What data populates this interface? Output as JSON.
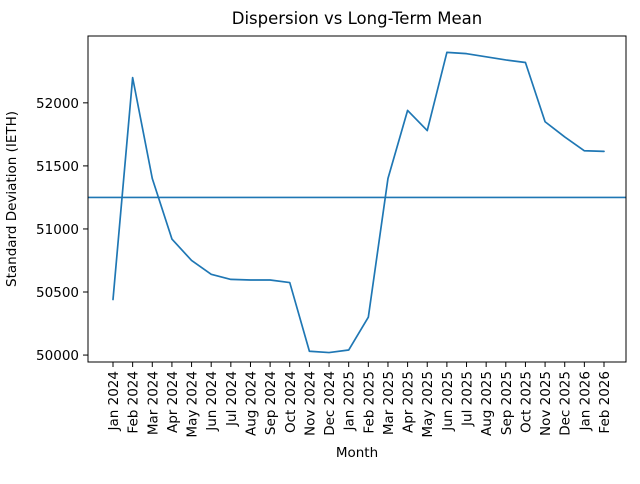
{
  "chart_data": {
    "type": "line",
    "title": "Dispersion vs Long-Term Mean",
    "xlabel": "Month",
    "ylabel": "Standard Deviation (IETH)",
    "categories": [
      "Jan 2024",
      "Feb 2024",
      "Mar 2024",
      "Apr 2024",
      "May 2024",
      "Jun 2024",
      "Jul 2024",
      "Aug 2024",
      "Sep 2024",
      "Oct 2024",
      "Nov 2024",
      "Dec 2024",
      "Jan 2025",
      "Feb 2025",
      "Mar 2025",
      "Apr 2025",
      "May 2025",
      "Jun 2025",
      "Jul 2025",
      "Aug 2025",
      "Sep 2025",
      "Oct 2025",
      "Nov 2025",
      "Dec 2025",
      "Jan 2026",
      "Feb 2026"
    ],
    "series": [
      {
        "name": "dispersion",
        "color": "#1f77b4",
        "values": [
          50440,
          52200,
          51400,
          50920,
          50750,
          50640,
          50600,
          50595,
          50595,
          50575,
          50030,
          50020,
          50040,
          50300,
          51400,
          51940,
          51780,
          52400,
          52390,
          52365,
          52340,
          52320,
          51850,
          51730,
          51620,
          51615
        ]
      }
    ],
    "mean_line": {
      "name": "long-term-mean",
      "value": 51250,
      "color": "#1f77b4"
    },
    "yticks": [
      50000,
      50500,
      51000,
      51500,
      52000
    ],
    "ylim": [
      49945,
      52530
    ],
    "grid": false,
    "legend_position": "none",
    "axis_color": "#000000"
  }
}
